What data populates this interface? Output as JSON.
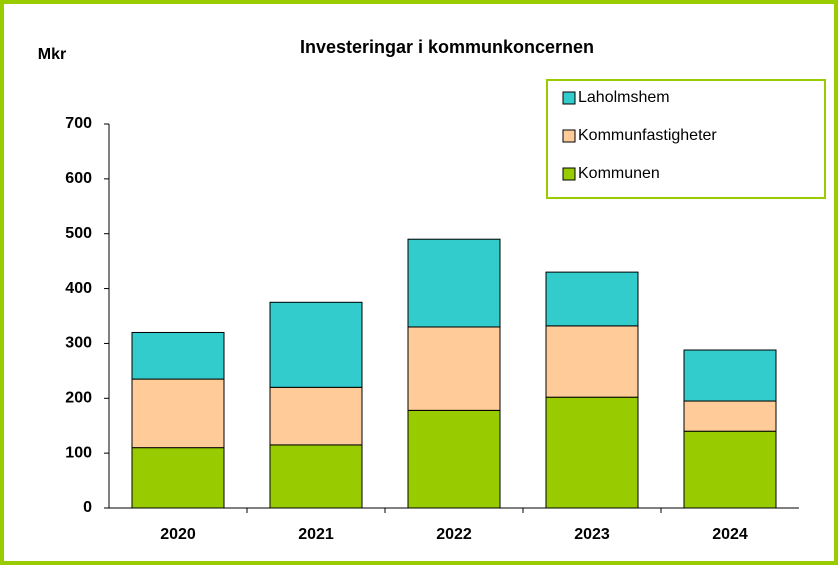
{
  "chart_data": {
    "type": "stacked_bar",
    "title": "Investeringar i kommunkoncernen",
    "y_label": "Mkr",
    "categories": [
      "2020",
      "2021",
      "2022",
      "2023",
      "2024"
    ],
    "series": [
      {
        "name": "Kommunen",
        "color": "#99cc00",
        "values": [
          110,
          115,
          178,
          202,
          140
        ]
      },
      {
        "name": "Kommunfastigheter",
        "color": "#ffcc99",
        "values": [
          125,
          105,
          152,
          130,
          55
        ]
      },
      {
        "name": "Laholmshem",
        "color": "#33cccc",
        "values": [
          85,
          155,
          160,
          98,
          93
        ]
      }
    ],
    "ylim": [
      0,
      700
    ],
    "yticks": [
      0,
      100,
      200,
      300,
      400,
      500,
      600,
      700
    ],
    "legend": "top-right"
  }
}
